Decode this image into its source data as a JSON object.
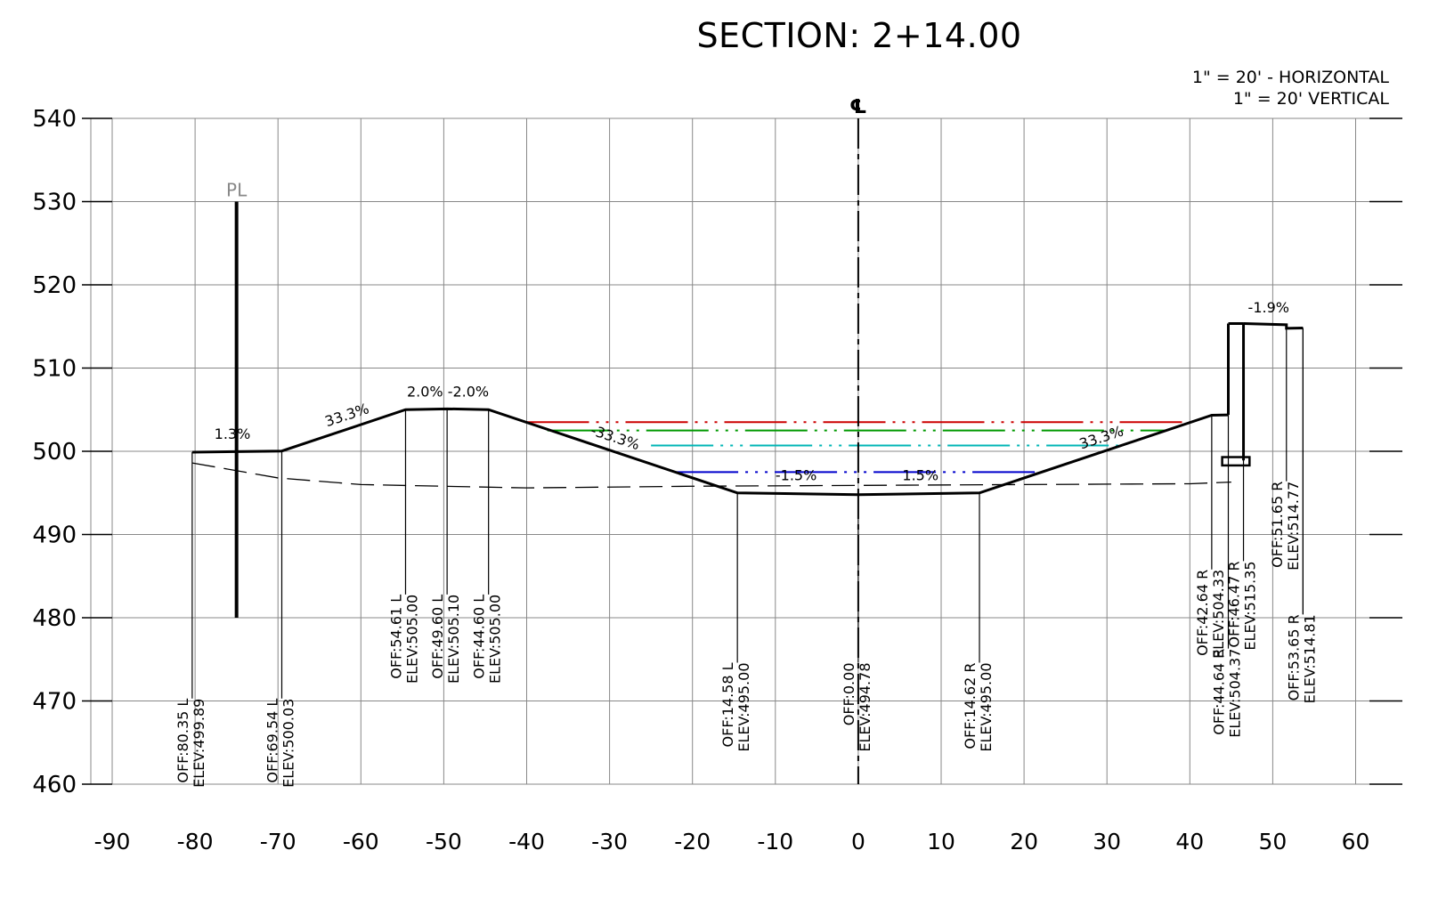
{
  "title": "SECTION: 2+14.00",
  "scale": {
    "horizontal": "1\" = 20' - HORIZONTAL",
    "vertical": "1\" = 20' VERTICAL"
  },
  "axes": {
    "x_ticks": [
      -90,
      -80,
      -70,
      -60,
      -50,
      -40,
      -30,
      -20,
      -10,
      0,
      10,
      20,
      30,
      40,
      50,
      60
    ],
    "y_ticks": [
      460,
      470,
      480,
      490,
      500,
      510,
      520,
      530,
      540
    ],
    "x_range": [
      -90,
      60
    ],
    "y_range": [
      460,
      540
    ]
  },
  "centerline_symbol": "℄",
  "property_line_symbol": "PL",
  "design_surface": {
    "left": [
      [
        -80.35,
        499.89
      ],
      [
        -69.54,
        500.03
      ],
      [
        -54.61,
        505.0
      ],
      [
        -49.6,
        505.1
      ],
      [
        -44.6,
        505.0
      ],
      [
        -14.58,
        495.0
      ],
      [
        0,
        494.78
      ],
      [
        14.62,
        495.0
      ],
      [
        42.64,
        504.33
      ],
      [
        44.64,
        504.37
      ]
    ],
    "wall": [
      [
        44.64,
        515.35
      ],
      [
        46.47,
        515.35
      ],
      [
        51.65,
        515.2
      ],
      [
        51.65,
        514.77
      ],
      [
        53.65,
        514.81
      ]
    ]
  },
  "existing_ground": [
    [
      -80.35,
      498.6
    ],
    [
      -70,
      496.8
    ],
    [
      -60,
      496.0
    ],
    [
      -40,
      495.6
    ],
    [
      -20,
      495.8
    ],
    [
      0,
      495.9
    ],
    [
      20,
      496.0
    ],
    [
      40,
      496.1
    ],
    [
      45,
      496.3
    ]
  ],
  "water_levels": [
    {
      "name": "red",
      "color": "#cc0000",
      "elev": 503.5,
      "from": -40.0,
      "to": 40.0
    },
    {
      "name": "green",
      "color": "#009900",
      "elev": 502.5,
      "from": -37.5,
      "to": 37.0
    },
    {
      "name": "cyan",
      "color": "#00b5b5",
      "elev": 500.7,
      "from": -25.0,
      "to": 32.0
    },
    {
      "name": "blue",
      "color": "#0000cc",
      "elev": 497.5,
      "from": -22.0,
      "to": 22.0
    }
  ],
  "grade_labels": [
    {
      "text": "1.3%",
      "x": -75.5,
      "y": 501.5,
      "angle": 0
    },
    {
      "text": "33.3%",
      "x": -61.5,
      "y": 503.8,
      "angle": -18
    },
    {
      "text": "2.0% -2.0%",
      "x": -49.5,
      "y": 506.6,
      "angle": 0
    },
    {
      "text": "-33.3%",
      "x": -29.5,
      "y": 501.1,
      "angle": 18
    },
    {
      "text": "-1.5%",
      "x": -7.5,
      "y": 496.5,
      "angle": 0
    },
    {
      "text": "1.5%",
      "x": 7.5,
      "y": 496.5,
      "angle": 0
    },
    {
      "text": "33.3%",
      "x": 29.5,
      "y": 501.1,
      "angle": -18
    },
    {
      "text": "-1.9%",
      "x": 49.5,
      "y": 516.7,
      "angle": 0
    }
  ],
  "stations": [
    {
      "off": "OFF:80.35 L",
      "elev": "ELEV:499.89",
      "x": -80.35,
      "top": 499.89,
      "bottom": 470.3
    },
    {
      "off": "OFF:69.54 L",
      "elev": "ELEV:500.03",
      "x": -69.54,
      "top": 500.03,
      "bottom": 470.3
    },
    {
      "off": "OFF:54.61 L",
      "elev": "ELEV:505.00",
      "x": -54.61,
      "top": 505.0,
      "bottom": 482.8
    },
    {
      "off": "OFF:49.60 L",
      "elev": "ELEV:505.10",
      "x": -49.6,
      "top": 505.1,
      "bottom": 482.8
    },
    {
      "off": "OFF:44.60 L",
      "elev": "ELEV:505.00",
      "x": -44.6,
      "top": 505.0,
      "bottom": 482.8
    },
    {
      "off": "OFF:14.58 L",
      "elev": "ELEV:495.00",
      "x": -14.58,
      "top": 495.0,
      "bottom": 474.6
    },
    {
      "off": "OFF:0.00",
      "elev": "ELEV:494.78",
      "x": 0,
      "top": 494.78,
      "bottom": 474.6
    },
    {
      "off": "OFF:14.62 R",
      "elev": "ELEV:495.00",
      "x": 14.62,
      "top": 495.0,
      "bottom": 474.6
    },
    {
      "off": "OFF:42.64 R",
      "elev": "ELEV:504.33",
      "x": 42.64,
      "top": 504.33,
      "bottom": 485.8
    },
    {
      "off": "OFF:44.64 R",
      "elev": "ELEV:504.37",
      "x": 44.64,
      "top": 504.37,
      "bottom": 476.3
    },
    {
      "off": "OFF:46.47 R",
      "elev": "ELEV:515.35",
      "x": 46.47,
      "top": 515.35,
      "bottom": 486.8
    },
    {
      "off": "OFF:51.65 R",
      "elev": "ELEV:514.77",
      "x": 51.65,
      "top": 514.77,
      "bottom": 496.4
    },
    {
      "off": "OFF:53.65 R",
      "elev": "ELEV:514.81",
      "x": 53.65,
      "top": 514.81,
      "bottom": 480.4
    }
  ],
  "property_line": {
    "x": -75.0,
    "top": 530.0,
    "bottom": 480.0
  }
}
